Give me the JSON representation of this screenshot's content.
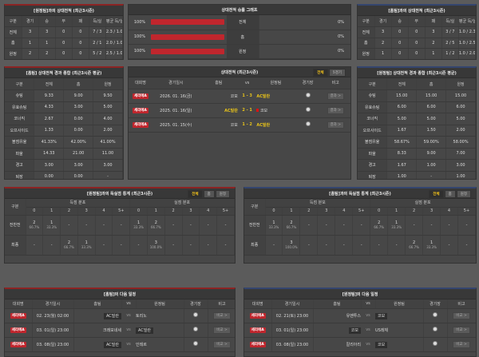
{
  "h2h_home": {
    "title": "[원정팀]과의 상대전적 (최근3시즌)",
    "headers": [
      "구분",
      "경기",
      "승",
      "무",
      "패",
      "득/실",
      "평균 득/실"
    ],
    "rows": [
      [
        "전체",
        "3",
        "3",
        "0",
        "0",
        "7 / 3",
        "2.3 / 1.0"
      ],
      [
        "홈",
        "1",
        "1",
        "0",
        "0",
        "2 / 1",
        "2.0 / 1.0"
      ],
      [
        "원정",
        "2",
        "2",
        "0",
        "0",
        "5 / 2",
        "2.5 / 1.0"
      ]
    ]
  },
  "graph": {
    "title": "상대전적 승률 그래프",
    "rows": [
      {
        "left": "100%",
        "label": "전체",
        "right": "0%",
        "value": 100
      },
      {
        "left": "100%",
        "label": "홈",
        "right": "0%",
        "value": 100
      },
      {
        "left": "100%",
        "label": "원정",
        "right": "0%",
        "value": 100
      }
    ]
  },
  "h2h_away": {
    "title": "[홈팀]과의 상대전적 (최근3시즌)",
    "headers": [
      "구분",
      "경기",
      "승",
      "무",
      "패",
      "득/실",
      "평균 득/실"
    ],
    "rows": [
      [
        "전체",
        "3",
        "0",
        "0",
        "3",
        "3 / 7",
        "1.0 / 2.3"
      ],
      [
        "홈",
        "2",
        "0",
        "0",
        "2",
        "2 / 5",
        "1.0 / 2.5"
      ],
      [
        "원정",
        "1",
        "0",
        "0",
        "1",
        "1 / 2",
        "1.0 / 2.0"
      ]
    ]
  },
  "stats_home": {
    "title": "[홈팀] 상대전적 경과 종합 (최근3시즌 평균)",
    "headers": [
      "구분",
      "전체",
      "홈",
      "원정"
    ],
    "rows": [
      [
        "슈팅",
        "9.33",
        "9.00",
        "9.50"
      ],
      [
        "유효슈팅",
        "4.33",
        "3.00",
        "5.00"
      ],
      [
        "코너킥",
        "2.67",
        "0.00",
        "4.00"
      ],
      [
        "오프사이드",
        "1.33",
        "0.00",
        "2.00"
      ],
      [
        "볼점유율",
        "41.33%",
        "42.00%",
        "41.00%"
      ],
      [
        "파울",
        "14.33",
        "21.00",
        "11.00"
      ],
      [
        "경고",
        "3.00",
        "3.00",
        "3.00"
      ],
      [
        "퇴장",
        "0.00",
        "0.00",
        "-"
      ]
    ]
  },
  "stats_away": {
    "title": "[원정팀] 상대전적 경과 종합 (최근3시즌 평균)",
    "headers": [
      "구분",
      "전체",
      "홈",
      "원정"
    ],
    "rows": [
      [
        "슈팅",
        "15.00",
        "15.00",
        "15.00"
      ],
      [
        "유효슈팅",
        "6.00",
        "6.00",
        "6.00"
      ],
      [
        "코너킥",
        "5.00",
        "5.00",
        "5.00"
      ],
      [
        "오프사이드",
        "1.67",
        "1.50",
        "2.00"
      ],
      [
        "볼점유율",
        "58.67%",
        "59.00%",
        "58.00%"
      ],
      [
        "파울",
        "8.33",
        "9.00",
        "7.00"
      ],
      [
        "경고",
        "1.67",
        "1.00",
        "3.00"
      ],
      [
        "퇴장",
        "1.00",
        "-",
        "1.00"
      ]
    ]
  },
  "h2h_list": {
    "title": "상대전적 (최근3시즌)",
    "toggle": [
      "전체",
      "5경기"
    ],
    "headers": [
      "대회명",
      "경기일시",
      "홈팀",
      "vs",
      "원정팀",
      "경기장",
      "비고"
    ],
    "rows": [
      {
        "league": "세리에A",
        "date": "2026. 01. 16(금)",
        "home": "코모",
        "score": "1 - 3",
        "away": "AC밀란",
        "winner": "away",
        "btn": "결과 >"
      },
      {
        "league": "세리에A",
        "date": "2025. 01. 16(일)",
        "home": "AC밀란",
        "score": "2 - 1",
        "away": "코모",
        "winner": "home",
        "card": true,
        "btn": "결과 >"
      },
      {
        "league": "세리에A",
        "date": "2025. 01. 15(수)",
        "home": "코모",
        "score": "1 - 2",
        "away": "AC밀란",
        "winner": "away",
        "btn": "결과 >"
      }
    ]
  },
  "goals_home": {
    "title": "[원정팀]과의 득실점 통계 (최근3시즌)",
    "toggle": [
      "전체",
      "홈",
      "원정"
    ],
    "col": "구분",
    "g1": "득점 분포",
    "g2": "실점 분포",
    "nums": [
      "0",
      "1",
      "2",
      "3",
      "4",
      "5+"
    ],
    "rows": [
      {
        "label": "전반전",
        "cells": [
          [
            "2",
            "66.7%"
          ],
          [
            "1",
            "33.3%"
          ],
          [
            "-",
            ""
          ],
          [
            "-",
            ""
          ],
          [
            "-",
            ""
          ],
          [
            "-",
            ""
          ],
          [
            "1",
            "33.3%"
          ],
          [
            "2",
            "66.7%"
          ],
          [
            "-",
            ""
          ],
          [
            "-",
            ""
          ],
          [
            "-",
            ""
          ],
          [
            "-",
            ""
          ]
        ]
      },
      {
        "label": "최종",
        "cells": [
          [
            "-",
            ""
          ],
          [
            "-",
            ""
          ],
          [
            "2",
            "66.7%"
          ],
          [
            "1",
            "33.3%"
          ],
          [
            "-",
            ""
          ],
          [
            "-",
            ""
          ],
          [
            "-",
            ""
          ],
          [
            "3",
            "100.0%"
          ],
          [
            "-",
            ""
          ],
          [
            "-",
            ""
          ],
          [
            "-",
            ""
          ],
          [
            "-",
            ""
          ]
        ]
      }
    ]
  },
  "goals_away": {
    "title": "[홈팀]과의 득실점 통계 (최근3시즌)",
    "toggle": [
      "전체",
      "홈",
      "원정"
    ],
    "col": "구분",
    "g1": "득점 분포",
    "g2": "실점 분포",
    "nums": [
      "0",
      "1",
      "2",
      "3",
      "4",
      "5+"
    ],
    "rows": [
      {
        "label": "전반전",
        "cells": [
          [
            "1",
            "33.3%"
          ],
          [
            "2",
            "66.7%"
          ],
          [
            "-",
            ""
          ],
          [
            "-",
            ""
          ],
          [
            "-",
            ""
          ],
          [
            "-",
            ""
          ],
          [
            "2",
            "66.7%"
          ],
          [
            "1",
            "33.3%"
          ],
          [
            "-",
            ""
          ],
          [
            "-",
            ""
          ],
          [
            "-",
            ""
          ],
          [
            "-",
            ""
          ]
        ]
      },
      {
        "label": "최종",
        "cells": [
          [
            "-",
            ""
          ],
          [
            "3",
            "100.0%"
          ],
          [
            "-",
            ""
          ],
          [
            "-",
            ""
          ],
          [
            "-",
            ""
          ],
          [
            "-",
            ""
          ],
          [
            "-",
            ""
          ],
          [
            "-",
            ""
          ],
          [
            "2",
            "66.7%"
          ],
          [
            "1",
            "33.3%"
          ],
          [
            "-",
            ""
          ],
          [
            "-",
            ""
          ]
        ]
      }
    ]
  },
  "next_home": {
    "title": "[홈팀]의 다음 일정",
    "headers": [
      "대회명",
      "경기일시",
      "홈팀",
      "vs",
      "원정팀",
      "경기장",
      "비고"
    ],
    "rows": [
      {
        "league": "세리에A",
        "date": "02. 23(월) 02:00",
        "home": "AC밀란",
        "away": "토리노",
        "hl": "home",
        "btn": "비교 >"
      },
      {
        "league": "세리에A",
        "date": "03. 01(일) 23:00",
        "home": "크레모네세",
        "away": "AC밀란",
        "hl": "away",
        "btn": "비교 >"
      },
      {
        "league": "세리에A",
        "date": "03. 08(일) 23:00",
        "home": "AC밀란",
        "away": "인테르",
        "hl": "home",
        "btn": "비교 >"
      }
    ]
  },
  "next_away": {
    "title": "[원정팀]의 다음 일정",
    "headers": [
      "대회명",
      "경기일시",
      "홈팀",
      "vs",
      "원정팀",
      "경기장",
      "비고"
    ],
    "rows": [
      {
        "league": "세리에A",
        "date": "02. 21(토) 23:00",
        "home": "유벤투스",
        "away": "코모",
        "hl": "away",
        "btn": "비교 >"
      },
      {
        "league": "세리에A",
        "date": "03. 01(일) 23:00",
        "home": "코모",
        "away": "US레체",
        "hl": "home",
        "btn": "비교 >"
      },
      {
        "league": "세리에A",
        "date": "03. 08(일) 23:00",
        "home": "칼리아리",
        "away": "코모",
        "hl": "away",
        "btn": "비교 >"
      }
    ]
  },
  "colors": {
    "accent": "#c0262d",
    "highlight": "#e8c31a",
    "home_border": "#8b2323",
    "away_border": "#34456e"
  }
}
